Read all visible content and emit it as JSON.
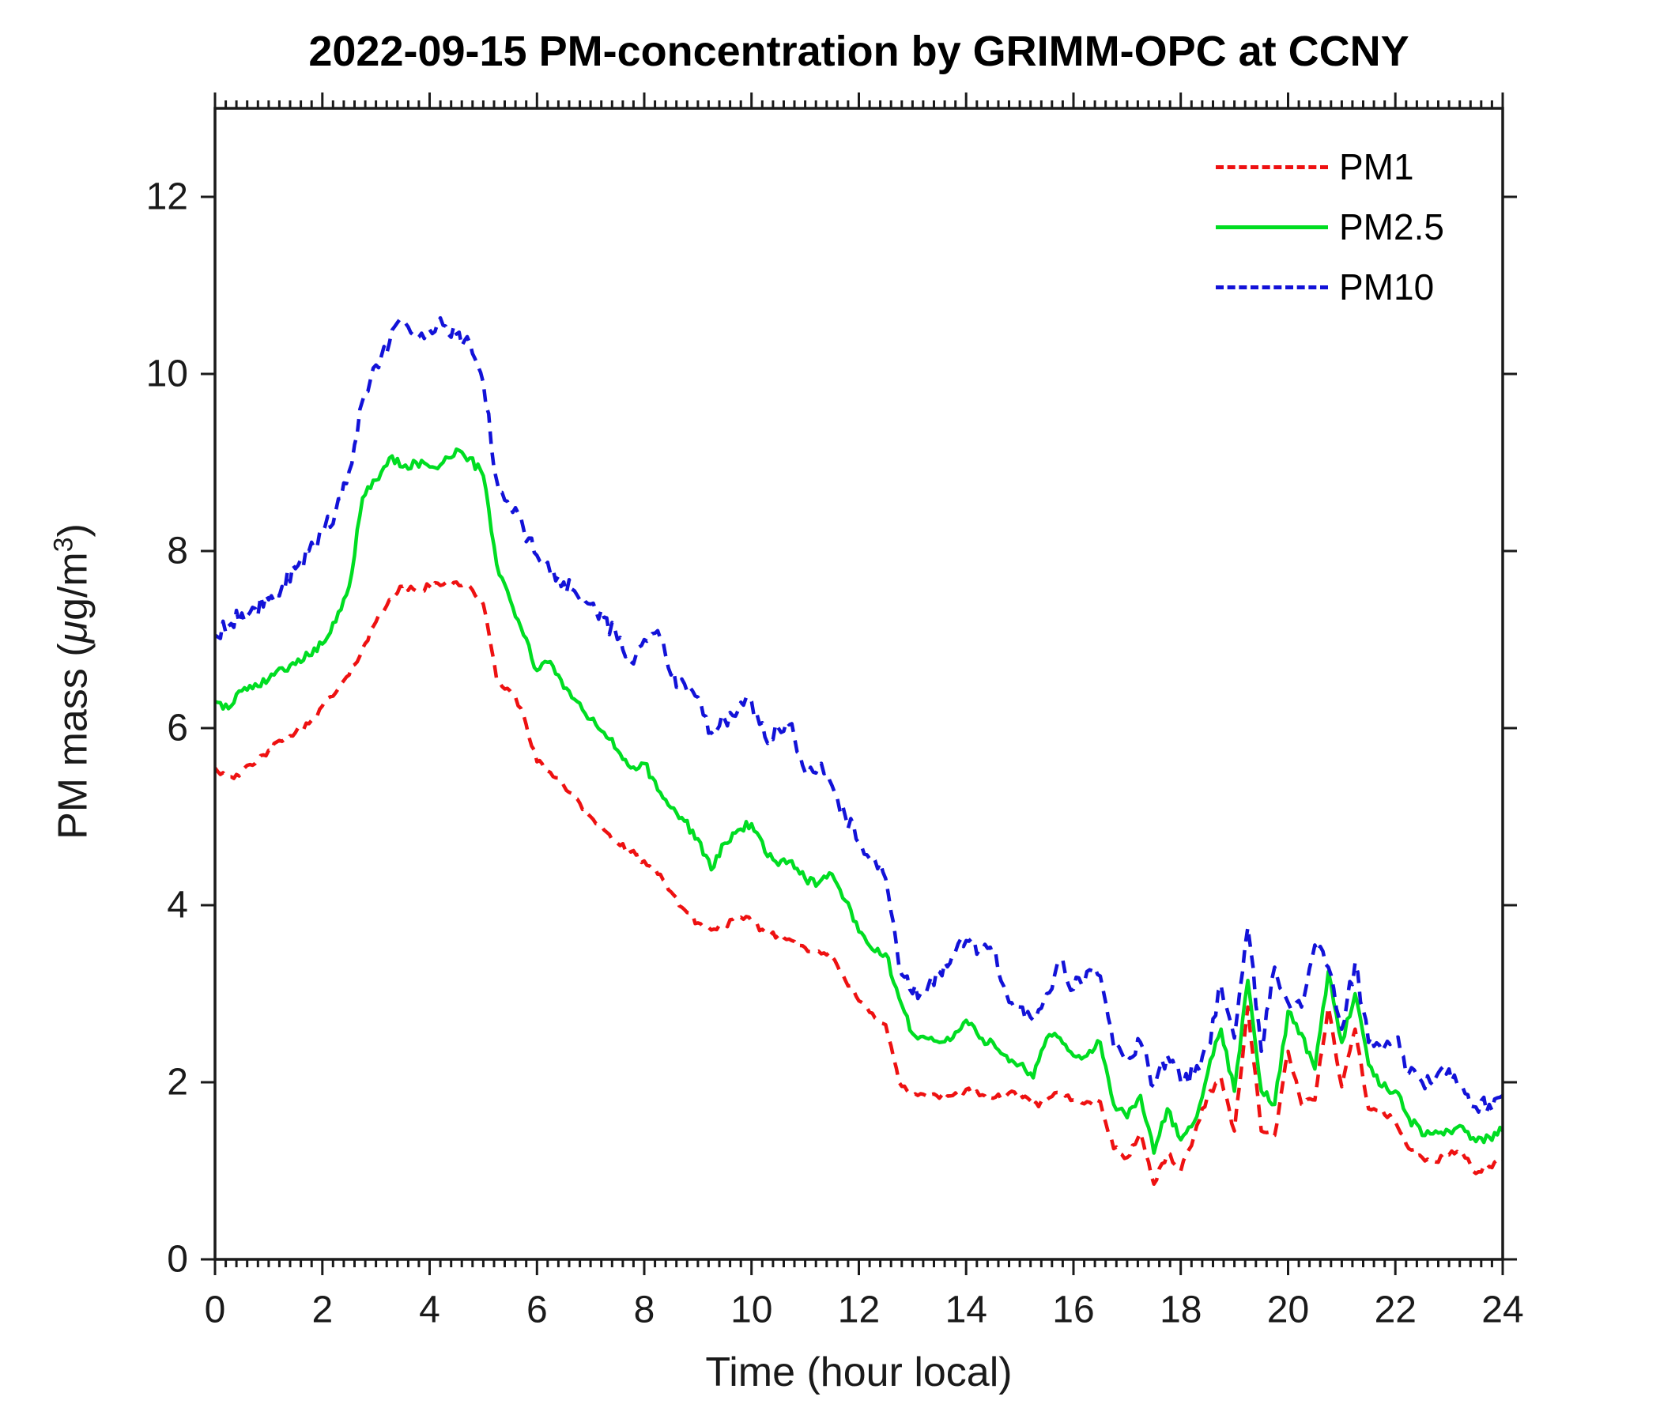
{
  "title": "2022-09-15 PM-concentration by GRIMM-OPC at CCNY",
  "axes": {
    "xlabel": "Time (hour local)",
    "ylabel": "PM mass (μg/m³)",
    "ylabel_parts": {
      "prefix": "PM mass (",
      "mu": "μ",
      "mid": "g/m",
      "sup": "3",
      "suffix": ")"
    },
    "x_ticks": [
      0,
      2,
      4,
      6,
      8,
      10,
      12,
      14,
      16,
      18,
      20,
      22,
      24
    ],
    "y_ticks": [
      0,
      2,
      4,
      6,
      8,
      10,
      12
    ],
    "x_minor_step": 0.2,
    "xlim": [
      0,
      24
    ],
    "ylim": [
      0,
      13
    ],
    "tick_direction": "out",
    "box": true,
    "axis_color": "#1a1a1a"
  },
  "legend": {
    "position": "top-right-inside",
    "items": [
      {
        "label": "PM1",
        "series": "PM1"
      },
      {
        "label": "PM2.5",
        "series": "PM2.5"
      },
      {
        "label": "PM10",
        "series": "PM10"
      }
    ]
  },
  "chart_data": {
    "type": "line",
    "title": "2022-09-15 PM-concentration by GRIMM-OPC at CCNY",
    "xlabel": "Time (hour local)",
    "ylabel": "PM mass (μg/m³)",
    "xlim": [
      0,
      24
    ],
    "ylim": [
      0,
      13
    ],
    "grid": false,
    "legend_position": "top-right-inside",
    "x_start": 0,
    "x_step": 0.25,
    "series": [
      {
        "name": "PM1",
        "color": "#ee1111",
        "line_style": "dashed",
        "line_width": 4.5,
        "noise_amplitude": 0.04,
        "values": [
          5.55,
          5.45,
          5.5,
          5.6,
          5.75,
          5.85,
          5.95,
          6.05,
          6.25,
          6.4,
          6.6,
          6.9,
          7.2,
          7.45,
          7.6,
          7.55,
          7.6,
          7.62,
          7.65,
          7.6,
          7.4,
          6.55,
          6.42,
          6.15,
          5.62,
          5.5,
          5.35,
          5.2,
          5.0,
          4.85,
          4.7,
          4.6,
          4.5,
          4.35,
          4.15,
          3.95,
          3.8,
          3.72,
          3.78,
          3.85,
          3.82,
          3.7,
          3.66,
          3.6,
          3.52,
          3.48,
          3.42,
          3.15,
          2.92,
          2.78,
          2.65,
          2.0,
          1.85,
          1.85,
          1.82,
          1.85,
          1.92,
          1.85,
          1.82,
          1.85,
          1.88,
          1.73,
          1.8,
          1.88,
          1.8,
          1.78,
          1.78,
          1.25,
          1.15,
          1.43,
          0.85,
          1.2,
          1.0,
          1.4,
          1.85,
          2.05,
          1.45,
          2.85,
          1.45,
          1.4,
          2.35,
          1.75,
          1.8,
          2.85,
          1.95,
          2.6,
          1.7,
          1.7,
          1.55,
          1.25,
          1.15,
          1.1,
          1.18,
          1.2,
          0.97,
          1.05,
          1.13
        ]
      },
      {
        "name": "PM2.5",
        "color": "#00dd22",
        "line_style": "solid",
        "line_width": 4.5,
        "noise_amplitude": 0.055,
        "values": [
          6.3,
          6.22,
          6.42,
          6.5,
          6.55,
          6.68,
          6.72,
          6.82,
          6.95,
          7.2,
          7.6,
          8.6,
          8.8,
          9.05,
          8.95,
          9.0,
          8.95,
          9.0,
          9.15,
          9.05,
          8.85,
          7.85,
          7.45,
          7.05,
          6.65,
          6.75,
          6.45,
          6.3,
          6.1,
          5.95,
          5.75,
          5.55,
          5.6,
          5.3,
          5.1,
          4.95,
          4.75,
          4.4,
          4.7,
          4.85,
          4.92,
          4.6,
          4.45,
          4.5,
          4.3,
          4.25,
          4.35,
          4.05,
          3.7,
          3.5,
          3.45,
          2.95,
          2.55,
          2.5,
          2.45,
          2.5,
          2.7,
          2.5,
          2.45,
          2.3,
          2.2,
          2.05,
          2.5,
          2.5,
          2.3,
          2.3,
          2.45,
          1.75,
          1.6,
          1.85,
          1.2,
          1.7,
          1.35,
          1.55,
          2.1,
          2.6,
          1.9,
          3.15,
          1.9,
          1.75,
          2.8,
          2.55,
          2.15,
          3.25,
          2.45,
          3.0,
          2.2,
          1.95,
          1.9,
          1.6,
          1.4,
          1.45,
          1.45,
          1.5,
          1.33,
          1.38,
          1.45
        ]
      },
      {
        "name": "PM10",
        "color": "#1212d8",
        "line_style": "dashed",
        "line_width": 4.5,
        "noise_amplitude": 0.1,
        "values": [
          7.05,
          7.15,
          7.3,
          7.35,
          7.45,
          7.6,
          7.8,
          8.0,
          8.2,
          8.45,
          8.9,
          9.7,
          10.1,
          10.35,
          10.6,
          10.4,
          10.5,
          10.55,
          10.45,
          10.35,
          9.9,
          8.8,
          8.5,
          8.25,
          7.95,
          7.75,
          7.65,
          7.5,
          7.4,
          7.25,
          7.0,
          6.75,
          7.0,
          7.1,
          6.6,
          6.5,
          6.35,
          5.95,
          6.1,
          6.2,
          6.3,
          5.9,
          6.0,
          6.05,
          5.5,
          5.55,
          5.35,
          5.0,
          4.7,
          4.55,
          4.3,
          3.3,
          3.0,
          3.0,
          3.25,
          3.45,
          3.6,
          3.5,
          3.45,
          3.0,
          2.85,
          2.7,
          3.0,
          3.35,
          3.05,
          3.25,
          3.2,
          2.4,
          2.3,
          2.45,
          1.95,
          2.3,
          2.0,
          2.1,
          2.4,
          3.1,
          2.5,
          3.75,
          2.35,
          3.3,
          2.9,
          2.85,
          3.55,
          3.3,
          2.6,
          3.35,
          2.45,
          2.35,
          2.5,
          2.1,
          2.0,
          2.05,
          2.15,
          1.95,
          1.72,
          1.75,
          1.85
        ]
      }
    ]
  }
}
